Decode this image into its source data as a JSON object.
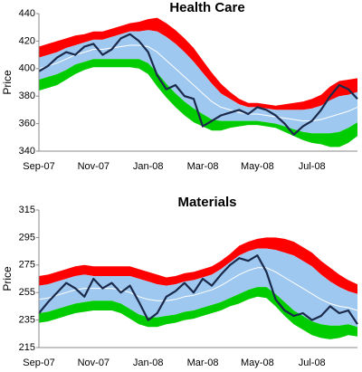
{
  "chart_data": [
    {
      "type": "band",
      "title": "Health Care",
      "y_label": "Price",
      "categories": [
        "Sep-07",
        null,
        null,
        null,
        null,
        null,
        "Nov-07",
        null,
        null,
        null,
        null,
        null,
        "Jan-08",
        null,
        null,
        null,
        null,
        null,
        "Mar-08",
        null,
        null,
        null,
        null,
        null,
        "May-08",
        null,
        null,
        null,
        null,
        null,
        "Jul-08",
        null,
        null,
        null,
        null,
        null
      ],
      "ylim": [
        340,
        440
      ],
      "yticks": [
        340,
        360,
        380,
        400,
        420,
        440
      ],
      "series": [
        {
          "color": "#ff0000",
          "values": [
            416,
            418,
            420,
            422,
            424,
            425,
            427,
            427,
            429,
            431,
            433,
            434,
            436,
            437,
            433,
            428,
            422,
            415,
            406,
            397,
            389,
            383,
            378,
            375,
            375,
            374,
            373,
            374,
            375,
            376,
            378,
            381,
            387,
            391,
            392,
            393
          ]
        },
        {
          "color": "#9fc8f0",
          "values": [
            408,
            410,
            412,
            415,
            417,
            419,
            421,
            421,
            423,
            425,
            427,
            427,
            428,
            427,
            423,
            418,
            412,
            405,
            397,
            389,
            382,
            378,
            374,
            372,
            372,
            371,
            370,
            370,
            370,
            370,
            371,
            373,
            377,
            380,
            381,
            383
          ]
        },
        {
          "color": "#ffffff",
          "values": [
            400,
            402,
            404,
            407,
            410,
            412,
            414,
            414,
            415,
            416,
            417,
            417,
            416,
            412,
            406,
            400,
            394,
            388,
            382,
            376,
            372,
            370,
            368,
            367,
            367,
            366,
            365,
            364,
            363,
            362,
            362,
            363,
            365,
            367,
            369,
            372
          ]
        },
        {
          "color": "#00cc00",
          "values": [
            392,
            394,
            396,
            399,
            403,
            405,
            407,
            407,
            407,
            407,
            407,
            407,
            404,
            397,
            389,
            382,
            376,
            371,
            367,
            363,
            362,
            362,
            362,
            362,
            362,
            361,
            360,
            358,
            356,
            354,
            353,
            353,
            353,
            354,
            357,
            361
          ]
        },
        {
          "color": "#00cc00",
          "values": [
            384,
            386,
            388,
            392,
            396,
            399,
            401,
            401,
            401,
            401,
            401,
            400,
            396,
            387,
            379,
            372,
            366,
            361,
            358,
            355,
            355,
            357,
            358,
            359,
            359,
            358,
            357,
            354,
            351,
            348,
            346,
            345,
            343,
            343,
            346,
            351
          ]
        },
        {
          "color": "#1b2a4a",
          "values": [
            398,
            402,
            408,
            412,
            410,
            416,
            418,
            410,
            414,
            422,
            425,
            420,
            412,
            395,
            385,
            388,
            380,
            378,
            358,
            362,
            366,
            368,
            370,
            367,
            372,
            370,
            366,
            360,
            352,
            358,
            362,
            370,
            380,
            388,
            385,
            378
          ]
        }
      ]
    },
    {
      "type": "band",
      "title": "Materials",
      "y_label": "Price",
      "categories": [
        "Sep-07",
        null,
        null,
        null,
        null,
        null,
        "Nov-07",
        null,
        null,
        null,
        null,
        null,
        "Jan-08",
        null,
        null,
        null,
        null,
        null,
        "Mar-08",
        null,
        null,
        null,
        null,
        null,
        "May-08",
        null,
        null,
        null,
        null,
        null,
        "Jul-08",
        null,
        null,
        null,
        null,
        null
      ],
      "ylim": [
        215,
        315
      ],
      "yticks": [
        215,
        235,
        255,
        275,
        295,
        315
      ],
      "series": [
        {
          "color": "#ff0000",
          "values": [
            267,
            268,
            270,
            272,
            274,
            275,
            274,
            274,
            274,
            274,
            274,
            272,
            270,
            268,
            266,
            267,
            269,
            270,
            272,
            274,
            278,
            283,
            289,
            292,
            294,
            295,
            295,
            294,
            292,
            288,
            284,
            278,
            273,
            268,
            264,
            261
          ]
        },
        {
          "color": "#9fc8f0",
          "values": [
            260,
            261,
            263,
            265,
            267,
            268,
            267,
            267,
            267,
            267,
            267,
            265,
            263,
            261,
            260,
            261,
            263,
            264,
            266,
            268,
            272,
            277,
            282,
            285,
            287,
            287,
            286,
            284,
            282,
            278,
            274,
            268,
            263,
            259,
            256,
            254
          ]
        },
        {
          "color": "#ffffff",
          "values": [
            250,
            251,
            253,
            255,
            257,
            258,
            258,
            258,
            258,
            257,
            255,
            252,
            250,
            249,
            249,
            250,
            252,
            253,
            255,
            257,
            260,
            264,
            268,
            271,
            273,
            273,
            270,
            266,
            262,
            258,
            254,
            250,
            247,
            245,
            244,
            242
          ]
        },
        {
          "color": "#00cc00",
          "values": [
            240,
            241,
            243,
            245,
            247,
            248,
            249,
            249,
            249,
            247,
            243,
            239,
            237,
            237,
            238,
            239,
            241,
            242,
            244,
            246,
            248,
            251,
            254,
            257,
            259,
            259,
            254,
            248,
            242,
            238,
            234,
            232,
            231,
            231,
            232,
            230
          ]
        },
        {
          "color": "#00cc00",
          "values": [
            233,
            234,
            236,
            238,
            240,
            241,
            242,
            242,
            242,
            240,
            236,
            232,
            230,
            230,
            232,
            233,
            235,
            236,
            238,
            240,
            242,
            245,
            247,
            250,
            252,
            251,
            245,
            238,
            232,
            228,
            224,
            222,
            221,
            222,
            224,
            223
          ]
        },
        {
          "color": "#1b2a4a",
          "values": [
            240,
            248,
            255,
            262,
            258,
            252,
            265,
            258,
            262,
            255,
            260,
            248,
            235,
            240,
            252,
            256,
            262,
            255,
            265,
            260,
            268,
            275,
            280,
            278,
            282,
            270,
            250,
            242,
            238,
            240,
            235,
            238,
            245,
            240,
            242,
            232
          ]
        }
      ]
    }
  ]
}
